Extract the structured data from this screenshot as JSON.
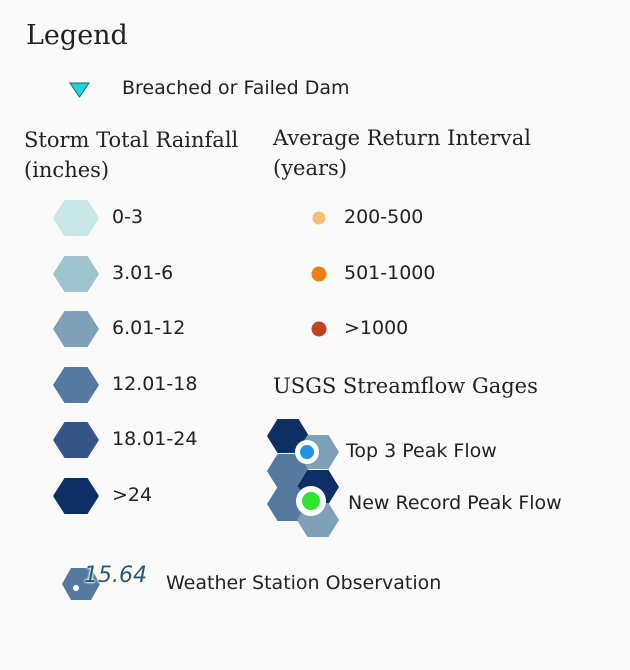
{
  "legend": {
    "title": "Legend",
    "dam": {
      "label": "Breached or Failed Dam",
      "color": "#22d3d9",
      "icon": "triangle-down-icon"
    },
    "rainfall": {
      "heading_line1": "Storm Total Rainfall",
      "heading_line2": "(inches)",
      "items": [
        {
          "label": "0-3",
          "color": "#c7e6e5"
        },
        {
          "label": "3.01-6",
          "color": "#9fc4cf"
        },
        {
          "label": "6.01-12",
          "color": "#7ea1b8"
        },
        {
          "label": "12.01-18",
          "color": "#5679a0"
        },
        {
          "label": "18.01-24",
          "color": "#345586"
        },
        {
          "label": ">24",
          "color": "#0e2f66"
        }
      ]
    },
    "return_interval": {
      "heading_line1": "Average Return Interval",
      "heading_line2": "(years)",
      "items": [
        {
          "label": "200-500",
          "color": "#f6bf7c"
        },
        {
          "label": "501-1000",
          "color": "#f07f11"
        },
        {
          "label": ">1000",
          "color": "#c0451c"
        }
      ]
    },
    "gages": {
      "heading": "USGS Streamflow Gages",
      "items": [
        {
          "label": "Top 3 Peak Flow",
          "color": "#1e95e6"
        },
        {
          "label": "New Record Peak Flow",
          "color": "#2ee62e"
        }
      ]
    },
    "weather_station": {
      "value": "15.64",
      "label": "Weather Station Observation"
    }
  }
}
